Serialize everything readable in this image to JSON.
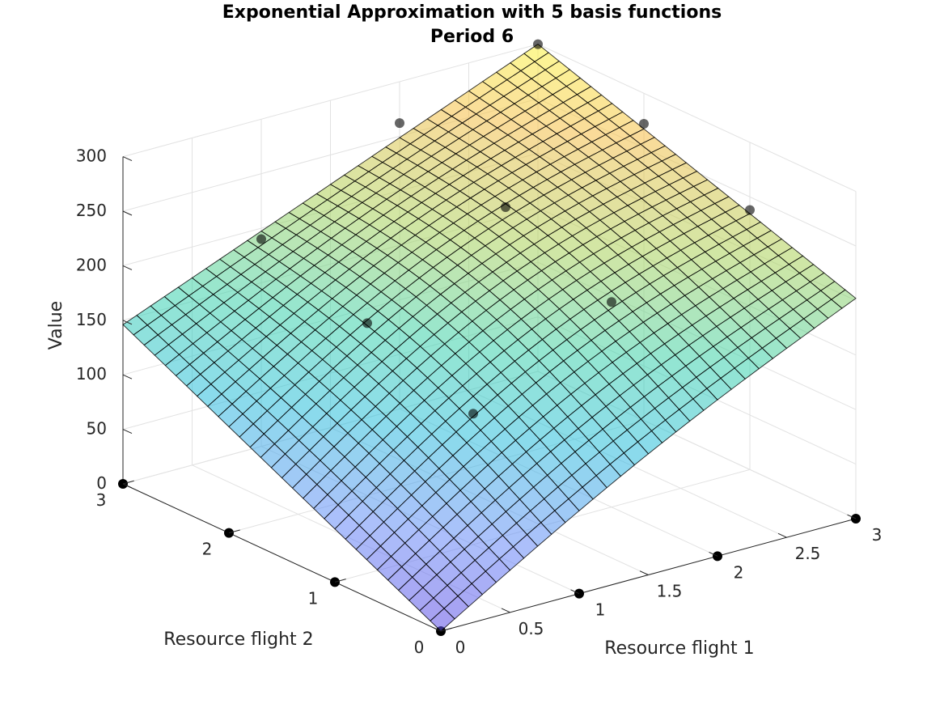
{
  "chart_data": {
    "type": "surface",
    "title": "Exponential Approximation with 5 basis functions",
    "subtitle": "Period 6",
    "xlabel": "Resource flight 1",
    "ylabel": "Resource flight 2",
    "zlabel": "Value",
    "xlim": [
      0,
      3
    ],
    "ylim": [
      0,
      3
    ],
    "zlim": [
      0,
      300
    ],
    "x_ticks": [
      "0",
      "0.5",
      "1",
      "1.5",
      "2",
      "2.5",
      "3"
    ],
    "y_ticks": [
      "0",
      "1",
      "2",
      "3"
    ],
    "z_ticks": [
      "0",
      "50",
      "100",
      "150",
      "200",
      "250",
      "300"
    ],
    "grid": true,
    "colormap": "parula",
    "surface_opacity": 0.55,
    "surface_mesh": "30x30",
    "surface_corners": [
      {
        "x": 0,
        "y": 0,
        "z": 0
      },
      {
        "x": 3,
        "y": 0,
        "z": 202
      },
      {
        "x": 0,
        "y": 3,
        "z": 146
      },
      {
        "x": 3,
        "y": 3,
        "z": 300
      }
    ],
    "points": [
      {
        "x": 0,
        "y": 0,
        "z": 0
      },
      {
        "x": 1,
        "y": 0,
        "z": 0
      },
      {
        "x": 2,
        "y": 0,
        "z": 0
      },
      {
        "x": 3,
        "y": 0,
        "z": 0
      },
      {
        "x": 0,
        "y": 1,
        "z": 0
      },
      {
        "x": 0,
        "y": 2,
        "z": 0
      },
      {
        "x": 0,
        "y": 3,
        "z": 0
      },
      {
        "x": 1,
        "y": 1,
        "z": 120
      },
      {
        "x": 2,
        "y": 1,
        "z": 188
      },
      {
        "x": 3,
        "y": 1,
        "z": 238
      },
      {
        "x": 1,
        "y": 2,
        "z": 158
      },
      {
        "x": 2,
        "y": 2,
        "z": 230
      },
      {
        "x": 3,
        "y": 2,
        "z": 272
      },
      {
        "x": 1,
        "y": 3,
        "z": 190
      },
      {
        "x": 2,
        "y": 3,
        "z": 262
      },
      {
        "x": 3,
        "y": 3,
        "z": 300
      }
    ]
  },
  "colors": {
    "grid": "#e2e2e2",
    "axis": "#262626",
    "mesh_edge": "#000000",
    "points": "#000000"
  }
}
